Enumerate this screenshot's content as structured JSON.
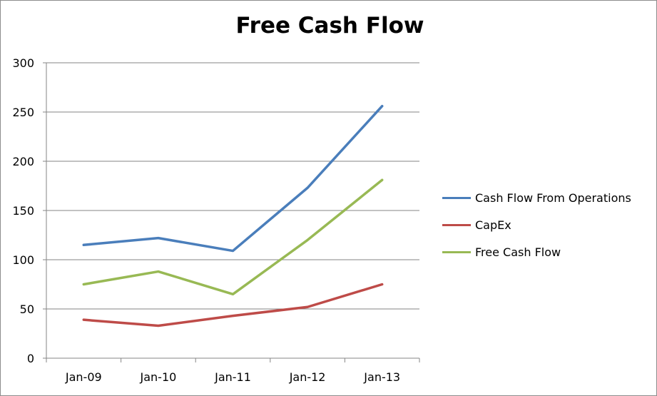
{
  "chart_data": {
    "type": "line",
    "title": "Free Cash Flow",
    "categories": [
      "Jan-09",
      "Jan-10",
      "Jan-11",
      "Jan-12",
      "Jan-13"
    ],
    "ylim": [
      0,
      300
    ],
    "yticks": [
      0,
      50,
      100,
      150,
      200,
      250,
      300
    ],
    "grid": true,
    "legend_position": "right",
    "series": [
      {
        "name": "Cash Flow From Operations",
        "color": "#4a7ebb",
        "values": [
          115,
          122,
          109,
          173,
          256
        ]
      },
      {
        "name": "CapEx",
        "color": "#be4b48",
        "values": [
          39,
          33,
          43,
          52,
          75
        ]
      },
      {
        "name": "Free Cash Flow",
        "color": "#98b954",
        "values": [
          75,
          88,
          65,
          120,
          181
        ]
      }
    ]
  }
}
